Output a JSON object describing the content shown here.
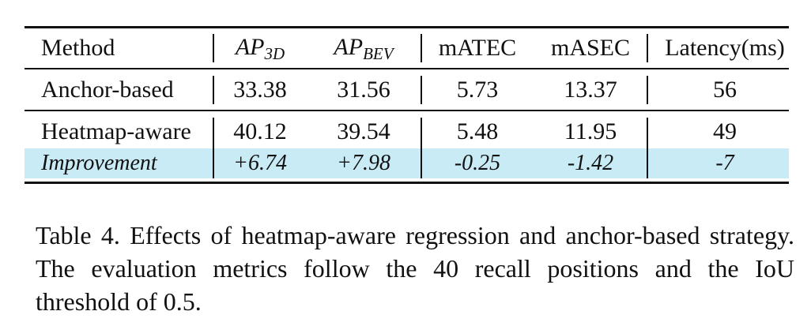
{
  "table": {
    "headers": {
      "method": "Method",
      "ap3d_main": "AP",
      "ap3d_sub": "3D",
      "apbev_main": "AP",
      "apbev_sub": "BEV",
      "matec": "mATEC",
      "masec": "mASEC",
      "latency": "Latency(ms)"
    },
    "rows": [
      {
        "method": "Anchor-based",
        "ap3d": "33.38",
        "apbev": "31.56",
        "matec": "5.73",
        "masec": "13.37",
        "latency": "56"
      },
      {
        "method": "Heatmap-aware",
        "ap3d": "40.12",
        "apbev": "39.54",
        "matec": "5.48",
        "masec": "11.95",
        "latency": "49"
      },
      {
        "method": "Improvement",
        "ap3d": "+6.74",
        "apbev": "+7.98",
        "matec": "-0.25",
        "masec": "-1.42",
        "latency": "-7"
      }
    ],
    "highlight_color": "#c9ebf6"
  },
  "caption": {
    "text": "Table 4.  Effects of heatmap-aware regression and anchor-based strategy. The evaluation metrics follow the 40 recall positions and the IoU threshold of 0.5."
  }
}
